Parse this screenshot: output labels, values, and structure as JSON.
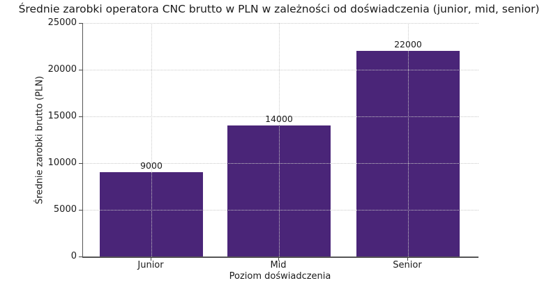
{
  "chart_data": {
    "type": "bar",
    "title": "Średnie zarobki operatora CNC brutto w PLN w zależności od doświadczenia (junior, mid, senior)",
    "xlabel": "Poziom doświadczenia",
    "ylabel": "Średnie zarobki brutto (PLN)",
    "categories": [
      "Junior",
      "Mid",
      "Senior"
    ],
    "values": [
      9000,
      14000,
      22000
    ],
    "bar_value_labels": [
      "9000",
      "14000",
      "22000"
    ],
    "ylim": [
      0,
      25000
    ],
    "yticks": [
      0,
      5000,
      10000,
      15000,
      20000,
      25000
    ],
    "ytick_labels": [
      "0",
      "5000",
      "10000",
      "15000",
      "20000",
      "25000"
    ],
    "grid": "dotted, horizontal and vertical, drawn above bars",
    "legend_position": "none",
    "bar_color": "#4a2578",
    "spine_color": "#555555",
    "grid_color": "#c9c9c9"
  }
}
